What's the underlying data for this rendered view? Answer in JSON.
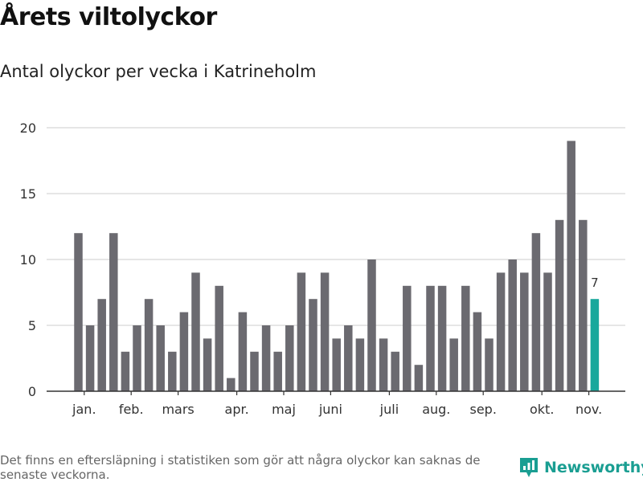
{
  "title": "Årets viltolyckor",
  "subtitle": "Antal olyckor per vecka i Katrineholm",
  "footnote": "Det finns en eftersläpning i statistiken som gör att några olyckor kan saknas de senaste veckorna.",
  "brand": {
    "name": "Newsworthy",
    "logo_icon": "newsworthy-logo-icon"
  },
  "colors": {
    "bar": "#6b6a70",
    "highlight": "#19a89c",
    "grid": "#dddddd",
    "axis": "#333333"
  },
  "chart_data": {
    "type": "bar",
    "values": [
      12,
      5,
      7,
      12,
      3,
      5,
      7,
      5,
      3,
      6,
      9,
      4,
      8,
      1,
      6,
      3,
      5,
      3,
      5,
      9,
      7,
      9,
      4,
      5,
      4,
      10,
      4,
      3,
      8,
      2,
      8,
      8,
      4,
      8,
      6,
      4,
      9,
      10,
      9,
      12,
      9,
      13,
      19,
      13,
      7
    ],
    "highlight_index": 44,
    "highlight_label": "7",
    "yticks": [
      "0",
      "5",
      "10",
      "15",
      "20"
    ],
    "ylim": [
      0,
      20
    ],
    "month_labels": [
      {
        "label": "jan.",
        "bar": 0.5
      },
      {
        "label": "feb.",
        "bar": 4.5
      },
      {
        "label": "mars",
        "bar": 8.5
      },
      {
        "label": "apr.",
        "bar": 13.5
      },
      {
        "label": "maj",
        "bar": 17.5
      },
      {
        "label": "juni",
        "bar": 21.5
      },
      {
        "label": "juli",
        "bar": 26.5
      },
      {
        "label": "aug.",
        "bar": 30.5
      },
      {
        "label": "sep.",
        "bar": 34.5
      },
      {
        "label": "okt.",
        "bar": 39.5
      },
      {
        "label": "nov.",
        "bar": 43.5
      }
    ],
    "grid": true
  }
}
